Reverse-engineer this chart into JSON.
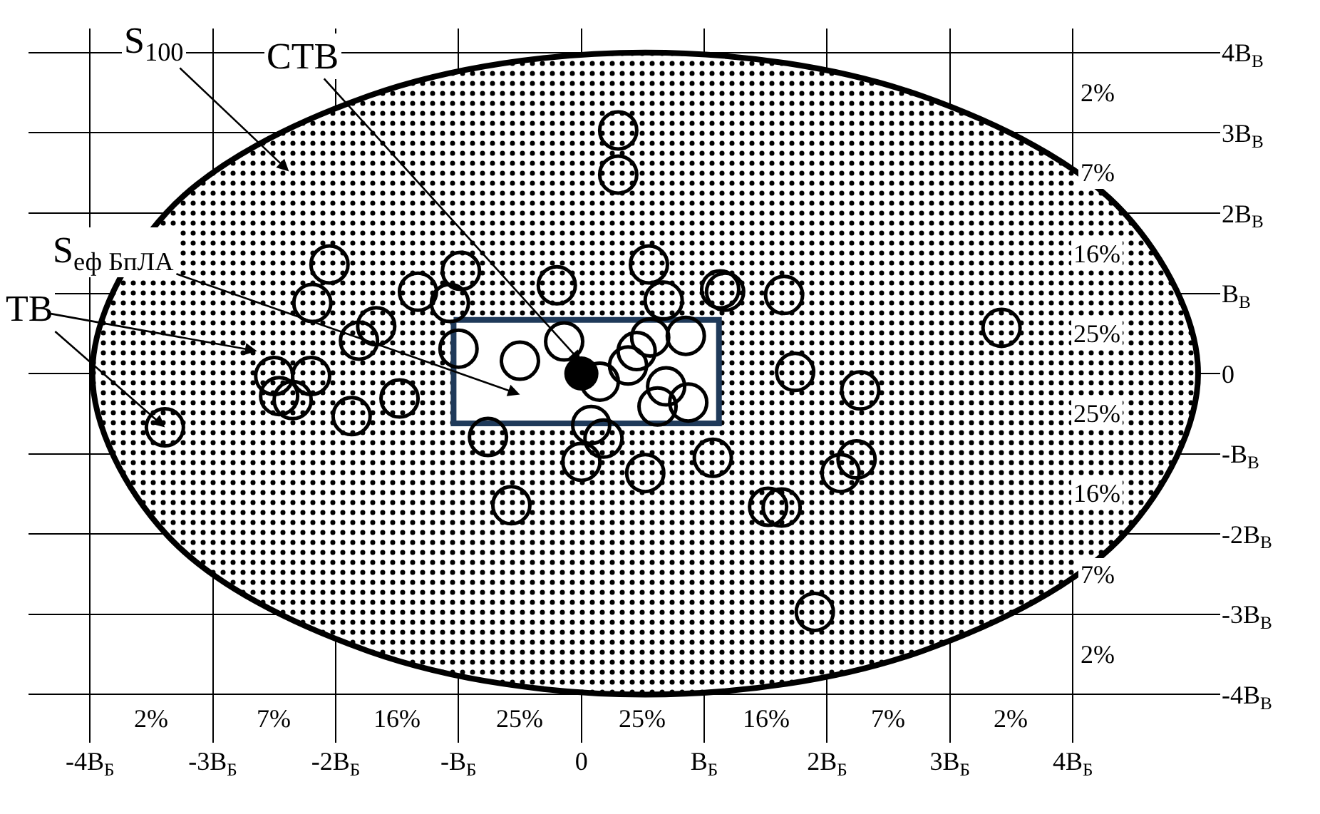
{
  "chart_data": {
    "type": "scatter",
    "series": [
      {
        "type": "area",
        "color": "#000000",
        "x": [
          5.02,
          4.42,
          2.77,
          0.52,
          -1.73,
          -3.38,
          -3.98,
          -3.38,
          -1.73,
          0.52,
          2.77,
          4.42,
          5.02
        ],
        "values": [
          0,
          2,
          3.46,
          4,
          3.46,
          2,
          0,
          -2,
          -3.46,
          -4,
          -3.46,
          -2,
          0
        ]
      },
      {
        "type": "area",
        "color": "#1f3a5a",
        "x": [
          -1.04,
          1.12,
          1.12,
          -1.04,
          -1.04
        ],
        "values": [
          0.67,
          0.67,
          -0.62,
          -0.62,
          0.67
        ]
      },
      {
        "color": "#000000",
        "marker": "circle",
        "x": [
          -2.05,
          -2.19,
          -1.67,
          -1.81,
          -1.33,
          -0.98,
          -1.07,
          -1.0,
          -0.5,
          -0.2,
          -0.14,
          -2.5,
          -2.2,
          -2.46,
          -2.35,
          -3.39,
          -1.87,
          -1.48,
          -0.76,
          -0.57,
          0.55,
          0.67,
          1.13,
          1.17,
          1.65,
          3.42,
          0.85,
          0.56,
          0.45,
          0.38,
          0.15,
          0.69,
          0.87,
          0.62,
          0.08,
          0.18,
          0.0,
          0.52,
          1.07,
          1.74,
          2.27,
          2.24,
          2.11,
          1.52,
          1.63,
          0.3,
          0.3,
          1.9
        ],
        "values": [
          1.36,
          0.88,
          0.59,
          0.41,
          1.02,
          1.28,
          0.88,
          0.31,
          0.16,
          1.1,
          0.4,
          -0.03,
          -0.03,
          -0.28,
          -0.33,
          -0.67,
          -0.53,
          -0.31,
          -0.79,
          -1.64,
          1.36,
          0.91,
          1.05,
          1.02,
          0.98,
          0.57,
          0.47,
          0.45,
          0.28,
          0.1,
          -0.1,
          -0.16,
          -0.36,
          -0.41,
          -0.64,
          -0.81,
          -1.1,
          -1.24,
          -1.05,
          0.02,
          -0.21,
          -1.07,
          -1.24,
          -1.66,
          -1.67,
          3.03,
          2.48,
          -2.97
        ]
      },
      {
        "color": "#000000",
        "marker": "circle",
        "x": [
          0
        ],
        "values": [
          0
        ]
      }
    ],
    "xlim": [
      -4.5,
      5.2
    ],
    "ylim": [
      -4.6,
      4.3
    ],
    "xticks": [
      {
        "value": -4,
        "label": "-4В$_{Б}$"
      },
      {
        "value": -3,
        "label": "-3В$_{Б}$"
      },
      {
        "value": -2,
        "label": "-2В$_{Б}$"
      },
      {
        "value": -1,
        "label": "-В$_{Б}$"
      },
      0,
      {
        "value": 1,
        "label": "В$_{Б}$"
      },
      {
        "value": 2,
        "label": "2В$_{Б}$"
      },
      {
        "value": 3,
        "label": "3В$_{Б}$"
      },
      {
        "value": 4,
        "label": "4В$_{Б}$"
      }
    ],
    "yticks": [
      {
        "value": -4,
        "label": "-4В$_{В}$"
      },
      {
        "value": -3,
        "label": "-3В$_{В}$"
      },
      {
        "value": -2,
        "label": "-2В$_{В}$"
      },
      {
        "value": -1,
        "label": "-В$_{В}$"
      },
      0,
      {
        "value": 1,
        "label": "В$_{В}$"
      },
      {
        "value": 2,
        "label": "2В$_{В}$"
      },
      {
        "value": 3,
        "label": "3В$_{В}$"
      },
      {
        "value": 4,
        "label": "4В$_{В}$"
      }
    ],
    "grid": true,
    "annotations": [
      "S$_{100}$",
      "СТВ",
      "S$_{еф БпЛА}$",
      {
        "text": "ТВ",
        "x": -3.39,
        "y": -0.67
      },
      "2%",
      "7%",
      "16%",
      "25%",
      "25%",
      "16%",
      "7%",
      "2%",
      "2%",
      "7%",
      "16%",
      "25%",
      "25%",
      "16%",
      "7%",
      "2%"
    ]
  }
}
